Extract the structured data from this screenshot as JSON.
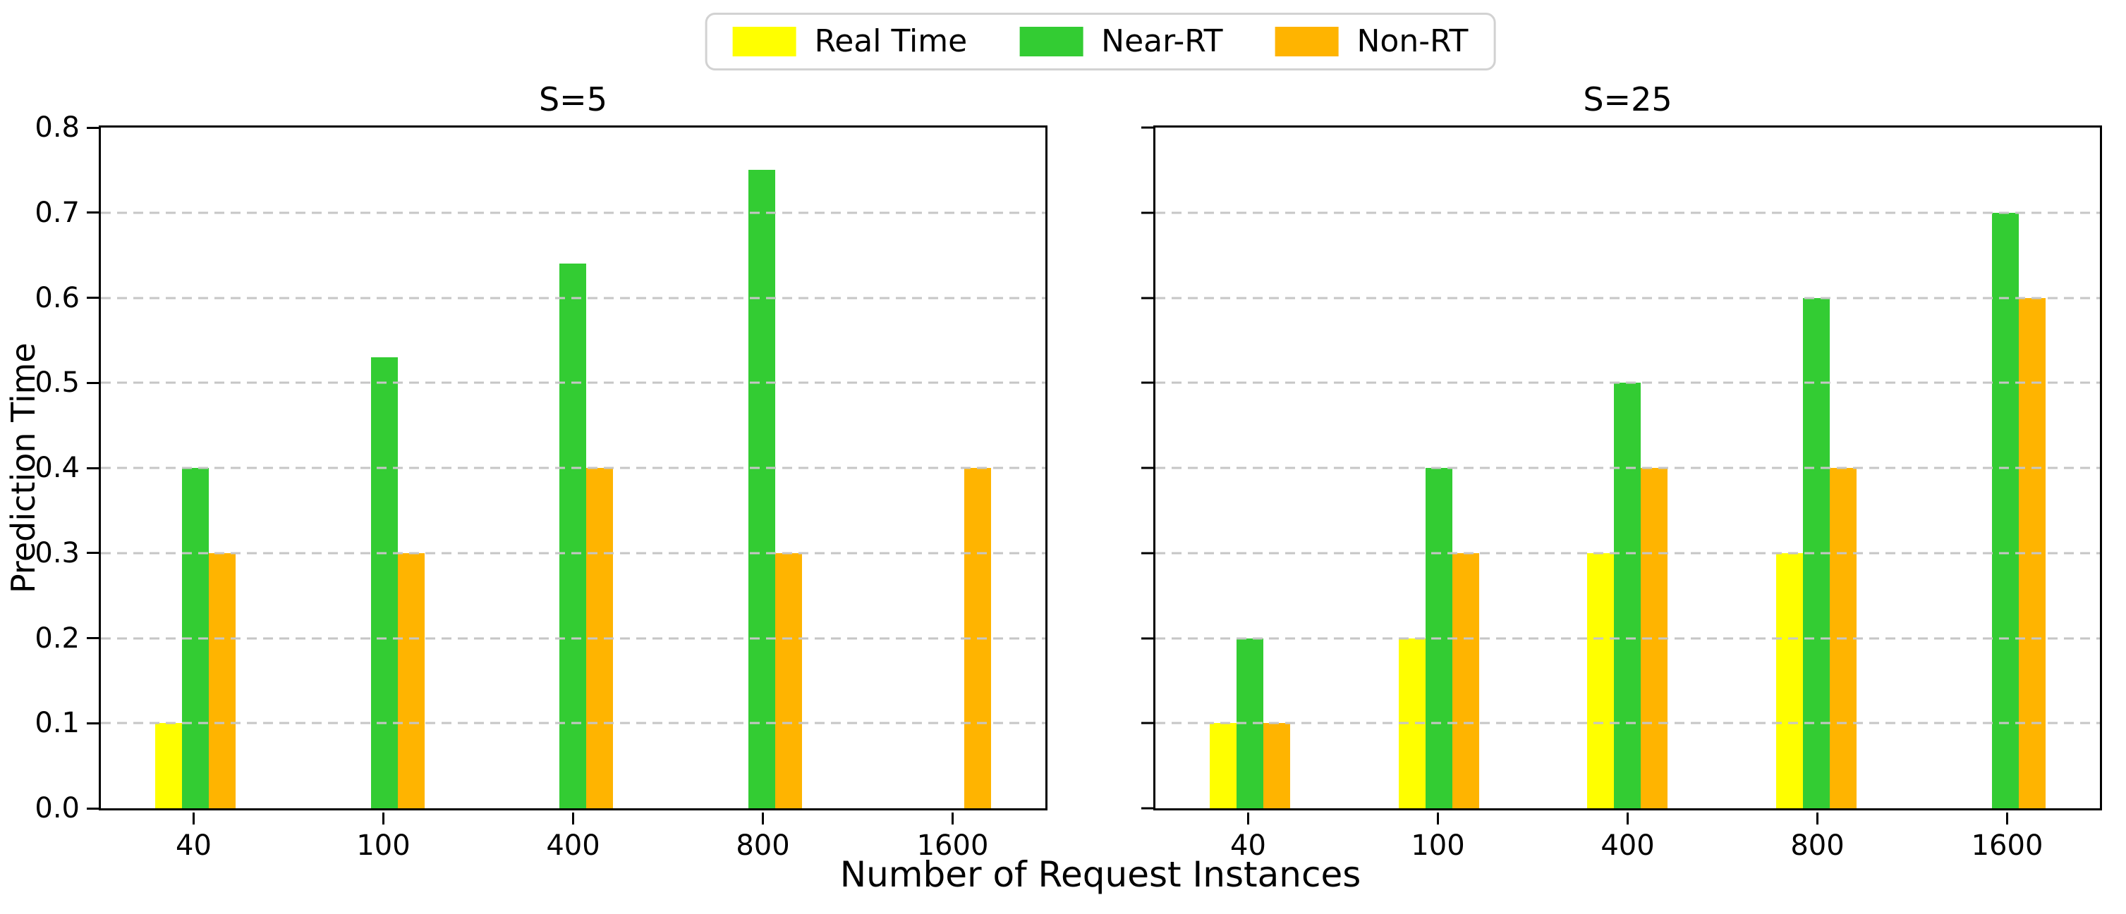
{
  "figure": {
    "ylabel": "Prediction Time",
    "xlabel": "Number of Request Instances"
  },
  "legend": {
    "items": [
      {
        "label": "Real Time",
        "color": "#FFFF00"
      },
      {
        "label": "Near-RT",
        "color": "#33CC33"
      },
      {
        "label": "Non-RT",
        "color": "#FFB400"
      }
    ]
  },
  "chart_data": [
    {
      "type": "bar",
      "title": "S=5",
      "categories": [
        "40",
        "100",
        "400",
        "800",
        "1600"
      ],
      "series": [
        {
          "name": "Real Time",
          "color": "#FFFF00",
          "values": [
            0.1,
            0,
            0,
            0,
            0
          ]
        },
        {
          "name": "Near-RT",
          "color": "#33CC33",
          "values": [
            0.4,
            0.53,
            0.64,
            0.75,
            0
          ]
        },
        {
          "name": "Non-RT",
          "color": "#FFB400",
          "values": [
            0.3,
            0.3,
            0.4,
            0.3,
            0.4
          ]
        }
      ],
      "ylim": [
        0,
        0.8
      ],
      "yticks": [
        "0.0",
        "0.1",
        "0.2",
        "0.3",
        "0.4",
        "0.5",
        "0.6",
        "0.7",
        "0.8"
      ],
      "ytick_labels_visible": true,
      "grid": "horizontal dashed, drawn over bars",
      "legend_position": "figure top center"
    },
    {
      "type": "bar",
      "title": "S=25",
      "categories": [
        "40",
        "100",
        "400",
        "800",
        "1600"
      ],
      "series": [
        {
          "name": "Real Time",
          "color": "#FFFF00",
          "values": [
            0.1,
            0.2,
            0.3,
            0.3,
            0
          ]
        },
        {
          "name": "Near-RT",
          "color": "#33CC33",
          "values": [
            0.2,
            0.4,
            0.5,
            0.6,
            0.7
          ]
        },
        {
          "name": "Non-RT",
          "color": "#FFB400",
          "values": [
            0.1,
            0.3,
            0.4,
            0.4,
            0.6
          ]
        }
      ],
      "ylim": [
        0,
        0.8
      ],
      "yticks": [
        "0.0",
        "0.1",
        "0.2",
        "0.3",
        "0.4",
        "0.5",
        "0.6",
        "0.7",
        "0.8"
      ],
      "ytick_labels_visible": false,
      "grid": "horizontal dashed, drawn over bars",
      "legend_position": "figure top center"
    }
  ]
}
